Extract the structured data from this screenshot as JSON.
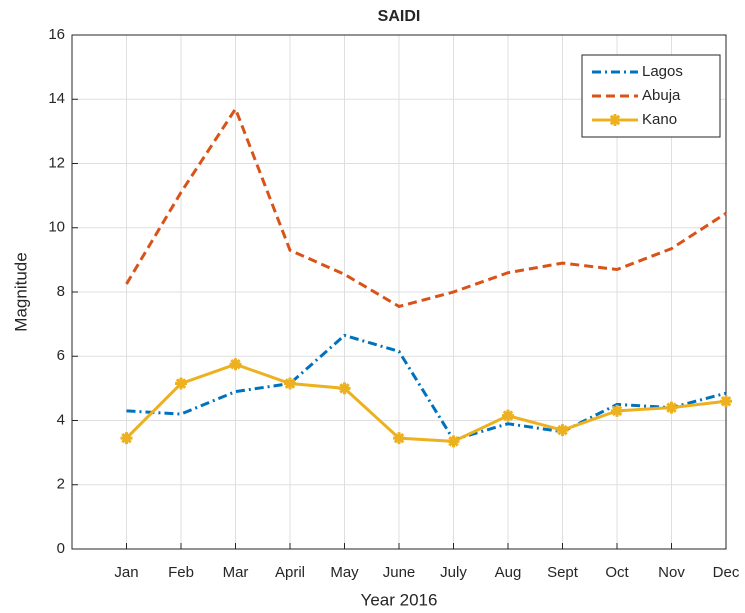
{
  "chart_data": {
    "type": "line",
    "title": "SAIDI",
    "x_label": "Year 2016",
    "y_label": "Magnitude",
    "categories": [
      "Jan",
      "Feb",
      "Mar",
      "April",
      "May",
      "June",
      "July",
      "Aug",
      "Sept",
      "Oct",
      "Nov",
      "Dec"
    ],
    "series": [
      {
        "name": "Lagos",
        "color": "#0072bd",
        "dash": "dashdot",
        "values": [
          4.3,
          4.2,
          4.9,
          5.15,
          6.65,
          6.15,
          3.4,
          3.9,
          3.65,
          4.5,
          4.4,
          4.85
        ]
      },
      {
        "name": "Abuja",
        "color": "#d95319",
        "dash": "dashed",
        "values": [
          8.25,
          11.1,
          13.7,
          9.3,
          8.55,
          7.55,
          8.0,
          8.6,
          8.9,
          8.7,
          9.35,
          10.45
        ]
      },
      {
        "name": "Kano",
        "color": "#edb120",
        "dash": "solid",
        "marker": "asterisk",
        "values": [
          3.45,
          5.15,
          5.75,
          5.15,
          5.0,
          3.45,
          3.35,
          4.15,
          3.7,
          4.3,
          4.4,
          4.6
        ]
      }
    ],
    "ylim": [
      0,
      16
    ],
    "yticks": [
      0,
      2,
      4,
      6,
      8,
      10,
      12,
      14,
      16
    ],
    "grid": true,
    "legend": "northeast"
  }
}
